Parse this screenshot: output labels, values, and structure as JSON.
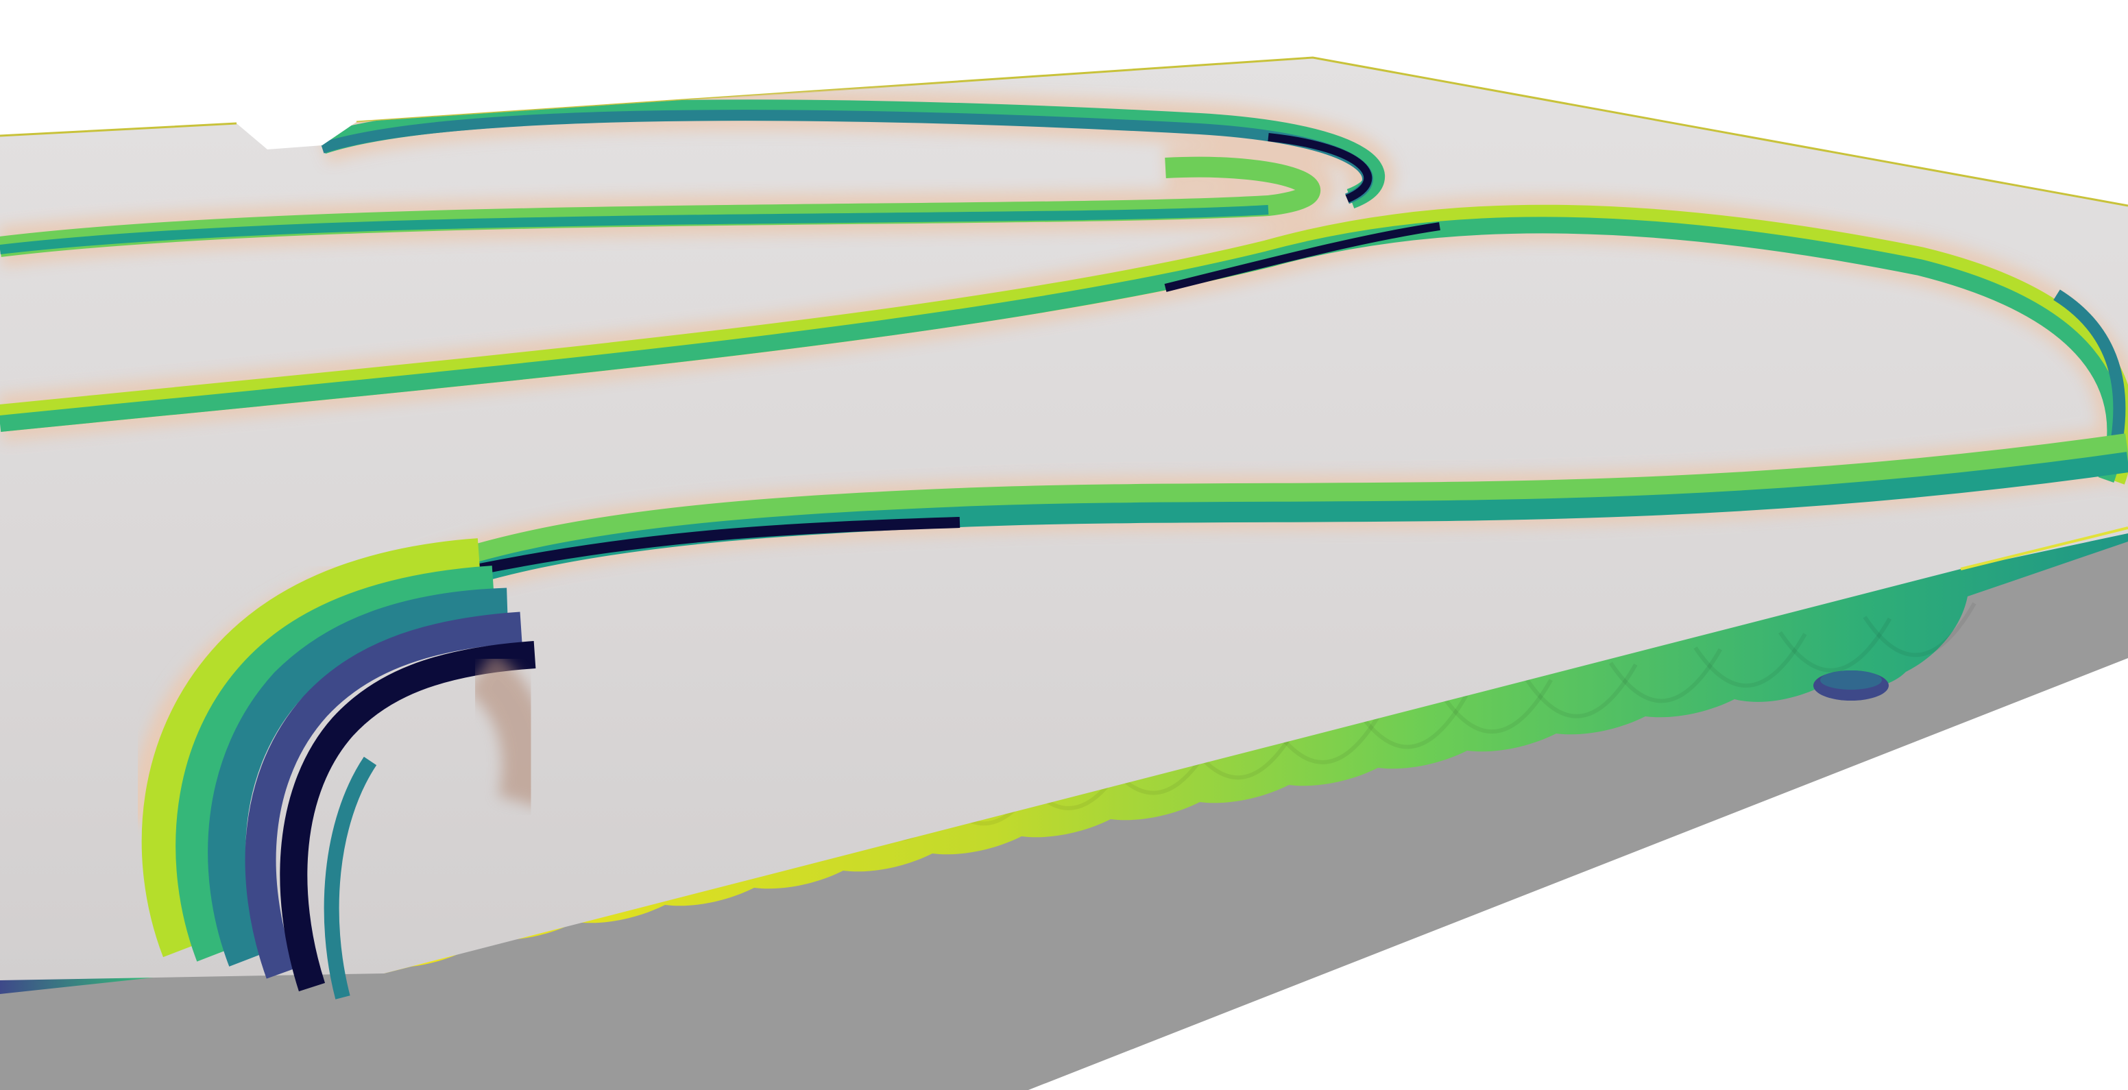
{
  "scene": {
    "colors": {
      "background": "#ffffff",
      "plateTop": "#d9d6d6",
      "plateBase": "#9a9a9a",
      "rimGlow": "#e9cbb6",
      "channelShade": "#b58f7c",
      "edgeLine": "#c8c23a"
    },
    "colormap": [
      "#fde725",
      "#b5de2b",
      "#6ece58",
      "#35b779",
      "#1f9e89",
      "#26828e",
      "#31688e",
      "#3e4989",
      "#482878",
      "#440154",
      "#0b0b3a"
    ],
    "wall_colormap": [
      "#f0e31c",
      "#cddc28",
      "#a5d83a",
      "#7ccf52",
      "#52c266",
      "#36b473",
      "#26a57d",
      "#1f9786"
    ]
  }
}
